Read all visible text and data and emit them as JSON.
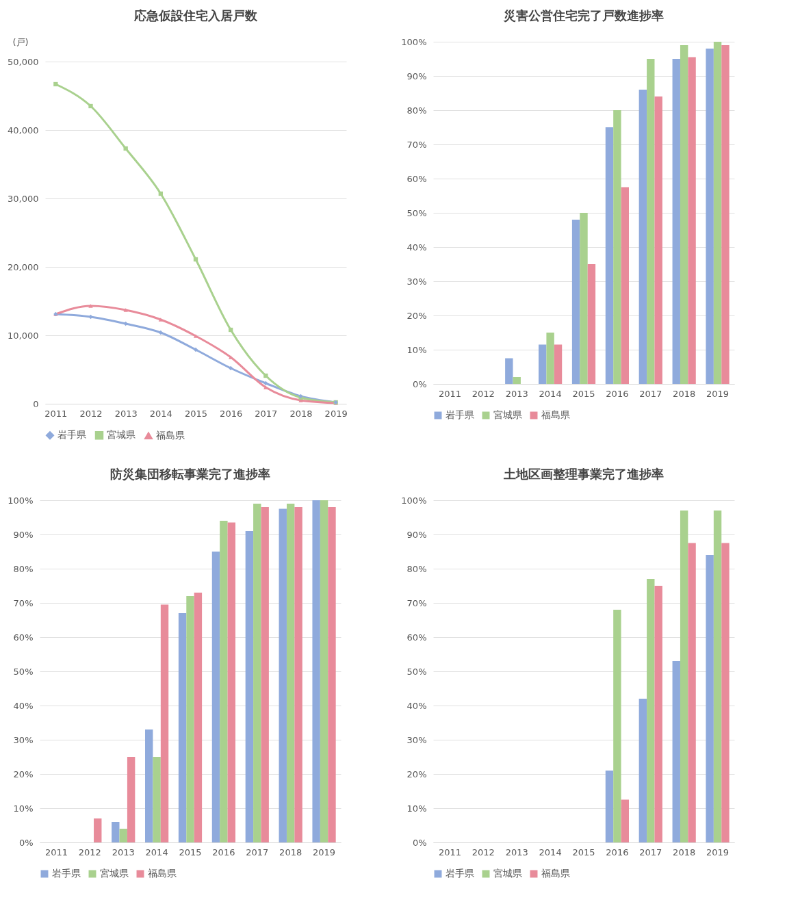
{
  "chart_data": [
    {
      "type": "line",
      "title": "応急仮設住宅入居戸数",
      "ylabel": "(戸)",
      "categories": [
        "2011",
        "2012",
        "2013",
        "2014",
        "2015",
        "2016",
        "2017",
        "2018",
        "2019"
      ],
      "ylim": [
        0,
        50000
      ],
      "yticks": [
        0,
        {
          "value": 10000,
          "label": "10,000"
        },
        {
          "value": 20000,
          "label": "20,000"
        },
        {
          "value": 30000,
          "label": "30,000"
        },
        {
          "value": 40000,
          "label": "40,000"
        },
        {
          "value": 50000,
          "label": "50,000"
        }
      ],
      "grid": "y",
      "legend": "bottom",
      "line_style": "solid",
      "series": [
        {
          "name": "岩手県",
          "color": "#8faadc",
          "marker": "diamond",
          "values": [
            13100,
            12700,
            11700,
            10400,
            7900,
            5200,
            3000,
            1100,
            200
          ]
        },
        {
          "name": "宮城県",
          "color": "#a9d18e",
          "marker": "square",
          "values": [
            46700,
            43500,
            37300,
            30700,
            21100,
            10800,
            4100,
            900,
            200
          ]
        },
        {
          "name": "福島県",
          "color": "#e88b9a",
          "marker": "triangle",
          "values": [
            13100,
            14300,
            13700,
            12300,
            9900,
            6800,
            2400,
            500,
            100
          ]
        }
      ]
    },
    {
      "type": "bar",
      "title": "災害公営住宅完了戸数進捗率",
      "categories": [
        "2011",
        "2012",
        "2013",
        "2014",
        "2015",
        "2016",
        "2017",
        "2018",
        "2019"
      ],
      "ylim": [
        0,
        100
      ],
      "yticks": [
        {
          "value": 0,
          "label": "0%"
        },
        {
          "value": 10,
          "label": "10%"
        },
        {
          "value": 20,
          "label": "20%"
        },
        {
          "value": 30,
          "label": "30%"
        },
        {
          "value": 40,
          "label": "40%"
        },
        {
          "value": 50,
          "label": "50%"
        },
        {
          "value": 60,
          "label": "60%"
        },
        {
          "value": 70,
          "label": "70%"
        },
        {
          "value": 80,
          "label": "80%"
        },
        {
          "value": 90,
          "label": "90%"
        },
        {
          "value": 100,
          "label": "100%"
        }
      ],
      "grid": "y",
      "legend": "bottom",
      "series": [
        {
          "name": "岩手県",
          "color": "#8faadc",
          "values": [
            null,
            null,
            7.5,
            11.5,
            48,
            75,
            86,
            95,
            98
          ]
        },
        {
          "name": "宮城県",
          "color": "#a9d18e",
          "values": [
            null,
            null,
            2,
            15,
            50,
            80,
            95,
            99,
            100
          ]
        },
        {
          "name": "福島県",
          "color": "#e88b9a",
          "values": [
            null,
            null,
            null,
            11.5,
            35,
            57.5,
            84,
            95.5,
            99
          ]
        }
      ]
    },
    {
      "type": "bar",
      "title": "防災集団移転事業完了進捗率",
      "categories": [
        "2011",
        "2012",
        "2013",
        "2014",
        "2015",
        "2016",
        "2017",
        "2018",
        "2019"
      ],
      "ylim": [
        0,
        100
      ],
      "yticks": [
        {
          "value": 0,
          "label": "0%"
        },
        {
          "value": 10,
          "label": "10%"
        },
        {
          "value": 20,
          "label": "20%"
        },
        {
          "value": 30,
          "label": "30%"
        },
        {
          "value": 40,
          "label": "40%"
        },
        {
          "value": 50,
          "label": "50%"
        },
        {
          "value": 60,
          "label": "60%"
        },
        {
          "value": 70,
          "label": "70%"
        },
        {
          "value": 80,
          "label": "80%"
        },
        {
          "value": 90,
          "label": "90%"
        },
        {
          "value": 100,
          "label": "100%"
        }
      ],
      "grid": "y",
      "legend": "bottom",
      "series": [
        {
          "name": "岩手県",
          "color": "#8faadc",
          "values": [
            null,
            null,
            6,
            33,
            67,
            85,
            91,
            97.5,
            100
          ]
        },
        {
          "name": "宮城県",
          "color": "#a9d18e",
          "values": [
            null,
            null,
            4,
            25,
            72,
            94,
            99,
            99,
            100
          ]
        },
        {
          "name": "福島県",
          "color": "#e88b9a",
          "values": [
            null,
            7,
            25,
            69.5,
            73,
            93.5,
            98,
            98,
            98
          ]
        }
      ]
    },
    {
      "type": "bar",
      "title": "土地区画整理事業完了進捗率",
      "categories": [
        "2011",
        "2012",
        "2013",
        "2014",
        "2015",
        "2016",
        "2017",
        "2018",
        "2019"
      ],
      "ylim": [
        0,
        100
      ],
      "yticks": [
        {
          "value": 0,
          "label": "0%"
        },
        {
          "value": 10,
          "label": "10%"
        },
        {
          "value": 20,
          "label": "20%"
        },
        {
          "value": 30,
          "label": "30%"
        },
        {
          "value": 40,
          "label": "40%"
        },
        {
          "value": 50,
          "label": "50%"
        },
        {
          "value": 60,
          "label": "60%"
        },
        {
          "value": 70,
          "label": "70%"
        },
        {
          "value": 80,
          "label": "80%"
        },
        {
          "value": 90,
          "label": "90%"
        },
        {
          "value": 100,
          "label": "100%"
        }
      ],
      "grid": "y",
      "legend": "bottom",
      "series": [
        {
          "name": "岩手県",
          "color": "#8faadc",
          "values": [
            null,
            null,
            null,
            null,
            null,
            21,
            42,
            53,
            84
          ]
        },
        {
          "name": "宮城県",
          "color": "#a9d18e",
          "values": [
            null,
            null,
            null,
            null,
            null,
            68,
            77,
            97,
            97
          ]
        },
        {
          "name": "福島県",
          "color": "#e88b9a",
          "values": [
            null,
            null,
            null,
            null,
            null,
            12.5,
            75,
            87.5,
            87.5
          ]
        }
      ]
    }
  ]
}
